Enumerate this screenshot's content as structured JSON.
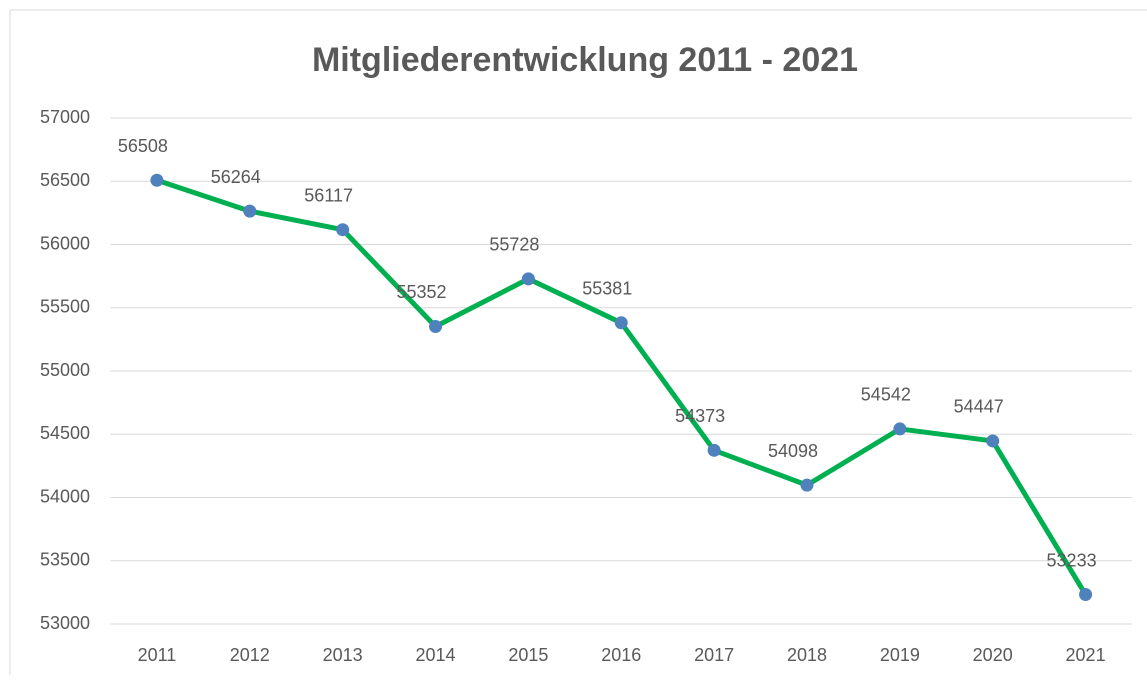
{
  "chart_data": {
    "type": "line",
    "title": "Mitgliederentwicklung 2011 - 2021",
    "categories": [
      "2011",
      "2012",
      "2013",
      "2014",
      "2015",
      "2016",
      "2017",
      "2018",
      "2019",
      "2020",
      "2021"
    ],
    "values": [
      56508,
      56264,
      56117,
      55352,
      55728,
      55381,
      54373,
      54098,
      54542,
      54447,
      53233
    ],
    "color": "#00b050",
    "marker_color": "#4f81bd",
    "ylim": [
      53000,
      57000
    ],
    "yticks": [
      53000,
      53500,
      54000,
      54500,
      55000,
      55500,
      56000,
      56500,
      57000
    ],
    "grid": true,
    "data_labels": true
  }
}
